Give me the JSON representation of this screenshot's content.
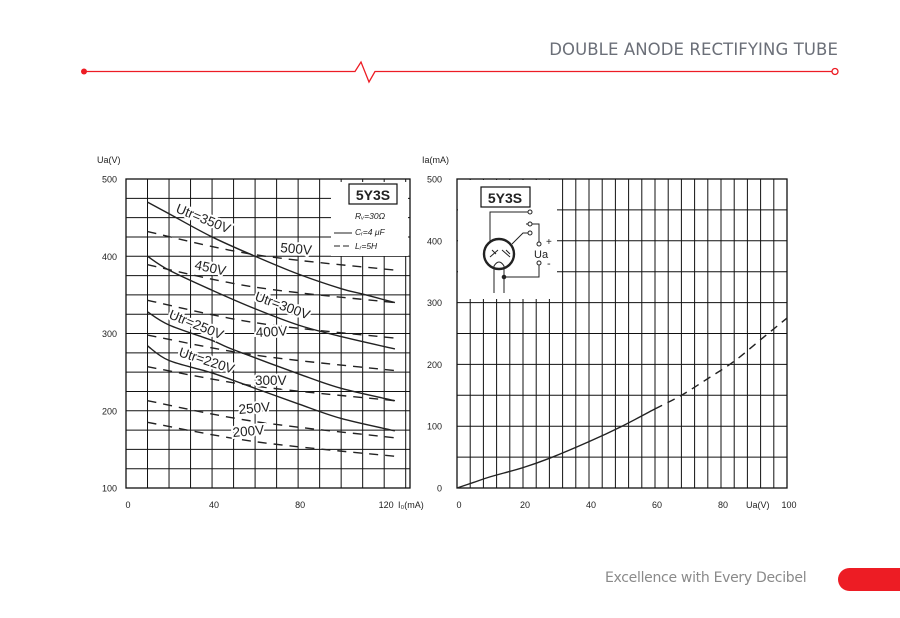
{
  "header": {
    "title": "DOUBLE ANODE RECTIFYING TUBE"
  },
  "footer": {
    "tagline": "Excellence with Every Decibel"
  },
  "colors": {
    "accent": "#ed1c24",
    "text_gray": "#6b6f78",
    "ink": "#222222"
  },
  "chart_data": [
    {
      "type": "line",
      "title": "",
      "xlabel": "I₀(mA)",
      "ylabel": "Ua(V)",
      "xlim": [
        0,
        132
      ],
      "ylim": [
        100,
        500
      ],
      "xticks": [
        0,
        40,
        80,
        120
      ],
      "yticks": [
        100,
        200,
        300,
        400,
        500
      ],
      "grid": true,
      "grid_step": {
        "x": 10,
        "y": 25
      },
      "legend_placement": "top-right",
      "legend": {
        "tube": "5Y3S",
        "rv": "Rᵥ=30Ω",
        "cr": "Cᵣ=4 μF",
        "lr": "Lᵣ=5H"
      },
      "series": [
        {
          "name": "Utr=350V",
          "style": "solid",
          "x": [
            10,
            20,
            40,
            60,
            80,
            100,
            110,
            125
          ],
          "y": [
            470,
            455,
            425,
            400,
            377,
            358,
            351,
            340
          ]
        },
        {
          "name": "Utr=300V",
          "style": "solid",
          "x": [
            10,
            20,
            40,
            60,
            80,
            100,
            125
          ],
          "y": [
            400,
            382,
            356,
            332,
            311,
            296,
            280
          ]
        },
        {
          "name": "Utr=250V",
          "style": "solid",
          "x": [
            10,
            20,
            40,
            50,
            80,
            100,
            125
          ],
          "y": [
            328,
            311,
            291,
            279,
            248,
            229,
            213
          ]
        },
        {
          "name": "Utr=220V",
          "style": "solid",
          "x": [
            10,
            20,
            40,
            60,
            80,
            100,
            125
          ],
          "y": [
            284,
            265,
            249,
            229,
            209,
            190,
            174
          ]
        },
        {
          "name": "500V",
          "style": "dashed",
          "x": [
            10,
            60,
            125
          ],
          "y": [
            432,
            402,
            382
          ]
        },
        {
          "name": "450V",
          "style": "dashed",
          "x": [
            10,
            60,
            125
          ],
          "y": [
            389,
            360,
            340
          ]
        },
        {
          "name": "400V",
          "style": "dashed",
          "x": [
            10,
            60,
            125
          ],
          "y": [
            343,
            314,
            294
          ]
        },
        {
          "name": "",
          "style": "dashed",
          "x": [
            10,
            60,
            125
          ],
          "y": [
            298,
            272,
            252
          ]
        },
        {
          "name": "300V",
          "style": "dashed",
          "x": [
            10,
            60,
            125
          ],
          "y": [
            257,
            232,
            213
          ]
        },
        {
          "name": "250V",
          "style": "dashed",
          "x": [
            10,
            60,
            125
          ],
          "y": [
            213,
            186,
            165
          ]
        },
        {
          "name": "200V",
          "style": "dashed",
          "x": [
            10,
            60,
            125
          ],
          "y": [
            185,
            160,
            141
          ]
        }
      ]
    },
    {
      "type": "line",
      "title": "",
      "xlabel": "Ua(V)",
      "ylabel": "Ia(mA)",
      "xlim": [
        0,
        100
      ],
      "ylim": [
        0,
        500
      ],
      "xticks": [
        0,
        20,
        40,
        60,
        80,
        100
      ],
      "yticks": [
        0,
        100,
        200,
        300,
        400,
        500
      ],
      "grid": true,
      "grid_step": {
        "x": 4,
        "y": 50
      },
      "inset": {
        "tube": "5Y3S",
        "voltage_label": "Ua",
        "plus": "+",
        "minus": "-"
      },
      "series": [
        {
          "style": "solid",
          "x": [
            0,
            5,
            10,
            20,
            28,
            40,
            50,
            60
          ],
          "y": [
            0,
            9,
            18,
            33,
            48,
            75,
            100,
            128
          ]
        },
        {
          "style": "dashed",
          "x": [
            60,
            68,
            76,
            84,
            92,
            100
          ],
          "y": [
            128,
            150,
            177,
            205,
            240,
            275
          ]
        }
      ]
    }
  ]
}
